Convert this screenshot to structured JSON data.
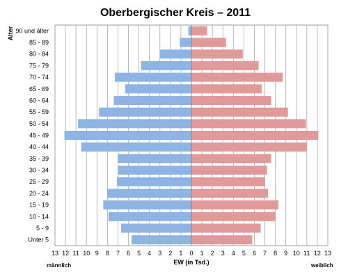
{
  "chart_data": {
    "type": "bar",
    "orientation": "horizontal",
    "title": "Oberbergischer Kreis – 2011",
    "ylabel": "Alter",
    "xlabel": "EW (in Tsd.)",
    "left_label": "männlich",
    "right_label": "weiblich",
    "xlim": [
      -13,
      13
    ],
    "x_ticks": [
      "13",
      "12",
      "11",
      "10",
      "9",
      "8",
      "7",
      "6",
      "5",
      "4",
      "3",
      "2",
      "1",
      "0",
      "1",
      "2",
      "3",
      "4",
      "5",
      "6",
      "7",
      "8",
      "9",
      "10",
      "11",
      "12",
      "13"
    ],
    "grid": true,
    "categories": [
      "90 und älter",
      "85 - 89",
      "80 - 84",
      "75 - 79",
      "70 - 74",
      "65 - 69",
      "60 - 64",
      "55 - 59",
      "50 - 54",
      "45 - 49",
      "40 - 44",
      "35 - 39",
      "30 - 34",
      "25 - 29",
      "20 - 24",
      "15 - 19",
      "10 - 14",
      "5 - 9",
      "Unter 5"
    ],
    "series": [
      {
        "name": "männlich",
        "color": "#8db4e3",
        "values": [
          0.3,
          1.1,
          3.0,
          4.8,
          7.3,
          6.3,
          7.4,
          8.8,
          10.8,
          12.1,
          10.5,
          7.0,
          7.0,
          7.1,
          8.0,
          8.4,
          7.9,
          6.7,
          5.7
        ]
      },
      {
        "name": "weiblich",
        "color": "#e09a9a",
        "values": [
          1.5,
          3.3,
          4.9,
          6.4,
          8.7,
          6.7,
          7.6,
          9.2,
          10.9,
          12.1,
          11.0,
          7.6,
          7.2,
          7.0,
          7.3,
          8.3,
          8.0,
          6.6,
          5.8
        ]
      }
    ]
  }
}
